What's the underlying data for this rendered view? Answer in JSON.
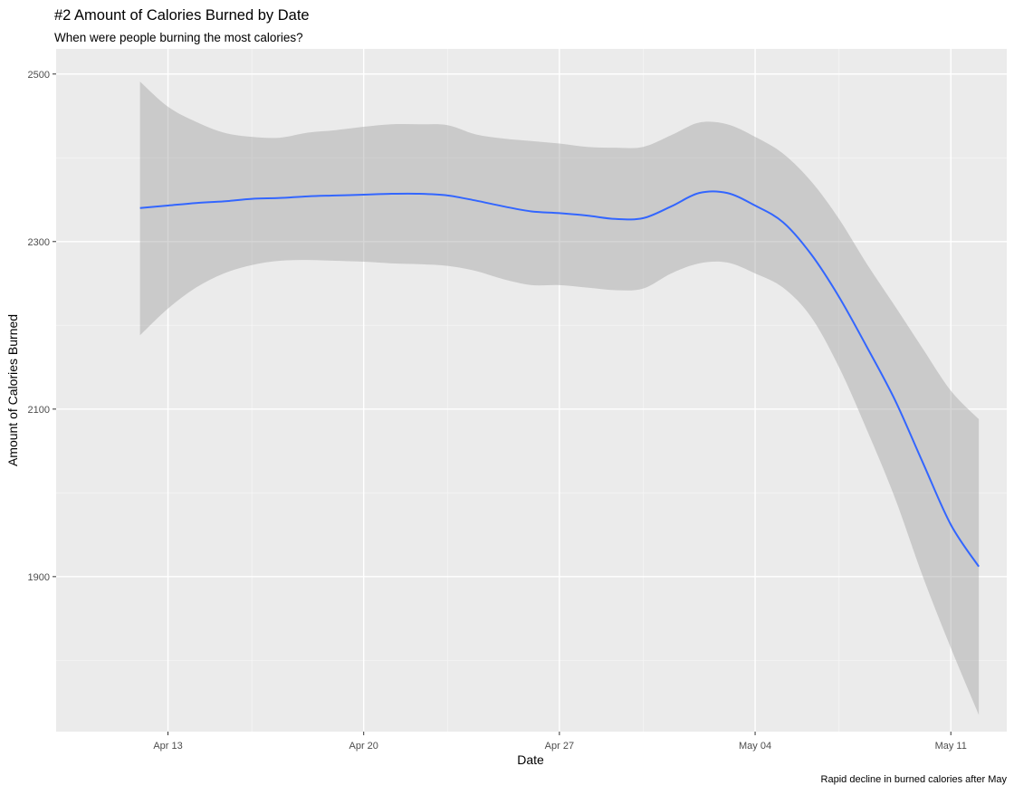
{
  "chart_data": {
    "type": "line",
    "title": "#2 Amount of Calories Burned by Date",
    "subtitle": "When were people burning the most calories?",
    "caption": "Rapid decline in burned calories after May",
    "xlabel": "Date",
    "ylabel": "Amount of Calories Burned",
    "x_axis": {
      "type": "date",
      "range": [
        "2016-04-09",
        "2016-05-13"
      ],
      "ticks": [
        {
          "date": "2016-04-13",
          "label": "Apr 13"
        },
        {
          "date": "2016-04-20",
          "label": "Apr 20"
        },
        {
          "date": "2016-04-27",
          "label": "Apr 27"
        },
        {
          "date": "2016-05-04",
          "label": "May 04"
        },
        {
          "date": "2016-05-11",
          "label": "May 11"
        }
      ],
      "minor_ticks": [
        "2016-04-16",
        "2016-04-23",
        "2016-04-30",
        "2016-05-07"
      ]
    },
    "y_axis": {
      "range": [
        1715,
        2530
      ],
      "ticks": [
        {
          "value": 1900,
          "label": "1900"
        },
        {
          "value": 2100,
          "label": "2100"
        },
        {
          "value": 2300,
          "label": "2300"
        },
        {
          "value": 2500,
          "label": "2500"
        }
      ],
      "minor_ticks": [
        1800,
        2000,
        2200,
        2400
      ]
    },
    "grid": true,
    "series": [
      {
        "color": "#3366ff",
        "band_color": "#999999",
        "points": [
          {
            "x": "2016-04-12",
            "y": 2340,
            "lower": 2188,
            "upper": 2491
          },
          {
            "x": "2016-04-13",
            "y": 2343,
            "lower": 2220,
            "upper": 2461
          },
          {
            "x": "2016-04-14",
            "y": 2346,
            "lower": 2245,
            "upper": 2443
          },
          {
            "x": "2016-04-15",
            "y": 2348,
            "lower": 2262,
            "upper": 2430
          },
          {
            "x": "2016-04-16",
            "y": 2351,
            "lower": 2272,
            "upper": 2425
          },
          {
            "x": "2016-04-17",
            "y": 2352,
            "lower": 2277,
            "upper": 2424
          },
          {
            "x": "2016-04-18",
            "y": 2354,
            "lower": 2278,
            "upper": 2430
          },
          {
            "x": "2016-04-19",
            "y": 2355,
            "lower": 2277,
            "upper": 2433
          },
          {
            "x": "2016-04-20",
            "y": 2356,
            "lower": 2276,
            "upper": 2437
          },
          {
            "x": "2016-04-21",
            "y": 2357,
            "lower": 2274,
            "upper": 2440
          },
          {
            "x": "2016-04-22",
            "y": 2357,
            "lower": 2273,
            "upper": 2440
          },
          {
            "x": "2016-04-23",
            "y": 2355,
            "lower": 2271,
            "upper": 2439
          },
          {
            "x": "2016-04-24",
            "y": 2349,
            "lower": 2265,
            "upper": 2428
          },
          {
            "x": "2016-04-25",
            "y": 2342,
            "lower": 2255,
            "upper": 2423
          },
          {
            "x": "2016-04-26",
            "y": 2336,
            "lower": 2248,
            "upper": 2420
          },
          {
            "x": "2016-04-27",
            "y": 2334,
            "lower": 2248,
            "upper": 2417
          },
          {
            "x": "2016-04-28",
            "y": 2331,
            "lower": 2245,
            "upper": 2413
          },
          {
            "x": "2016-04-29",
            "y": 2327,
            "lower": 2242,
            "upper": 2412
          },
          {
            "x": "2016-04-30",
            "y": 2328,
            "lower": 2244,
            "upper": 2413
          },
          {
            "x": "2016-05-01",
            "y": 2342,
            "lower": 2262,
            "upper": 2427
          },
          {
            "x": "2016-05-02",
            "y": 2358,
            "lower": 2274,
            "upper": 2442
          },
          {
            "x": "2016-05-03",
            "y": 2358,
            "lower": 2275,
            "upper": 2440
          },
          {
            "x": "2016-05-04",
            "y": 2343,
            "lower": 2262,
            "upper": 2425
          },
          {
            "x": "2016-05-05",
            "y": 2323,
            "lower": 2245,
            "upper": 2405
          },
          {
            "x": "2016-05-06",
            "y": 2285,
            "lower": 2210,
            "upper": 2372
          },
          {
            "x": "2016-05-07",
            "y": 2234,
            "lower": 2150,
            "upper": 2327
          },
          {
            "x": "2016-05-08",
            "y": 2174,
            "lower": 2075,
            "upper": 2273
          },
          {
            "x": "2016-05-09",
            "y": 2111,
            "lower": 1994,
            "upper": 2223
          },
          {
            "x": "2016-05-10",
            "y": 2036,
            "lower": 1900,
            "upper": 2172
          },
          {
            "x": "2016-05-11",
            "y": 1962,
            "lower": 1815,
            "upper": 2122
          },
          {
            "x": "2016-05-12",
            "y": 1912,
            "lower": 1735,
            "upper": 2088
          }
        ]
      }
    ]
  }
}
